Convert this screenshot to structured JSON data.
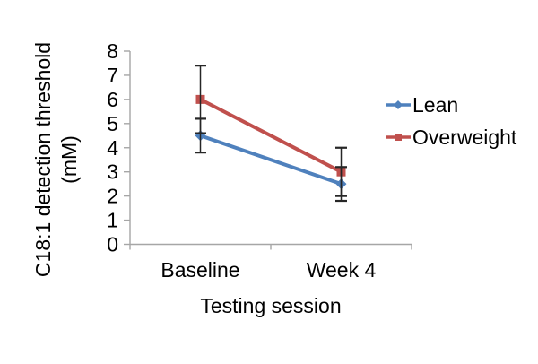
{
  "chart_data": {
    "type": "line",
    "title": "",
    "categories": [
      "Baseline",
      "Week 4"
    ],
    "series": [
      {
        "name": "Lean",
        "color": "#4F81BD",
        "marker": "diamond",
        "values": [
          4.5,
          2.5
        ],
        "error_plus": [
          0.7,
          0.7
        ],
        "error_minus": [
          0.7,
          0.7
        ]
      },
      {
        "name": "Overweight",
        "color": "#C0504D",
        "marker": "square",
        "values": [
          6.0,
          3.0
        ],
        "error_plus": [
          1.4,
          1.0
        ],
        "error_minus": [
          1.4,
          1.0
        ]
      }
    ],
    "xlabel": "Testing session",
    "ylabel_lines": [
      "C18:1 detection threshold",
      "(mM)"
    ],
    "ylim": [
      0,
      8
    ],
    "ytick_step": 1,
    "ytick_labels": [
      "0",
      "1",
      "2",
      "3",
      "4",
      "5",
      "6",
      "7",
      "8"
    ],
    "legend_position": "right",
    "grid": false,
    "colors": {
      "axis": "#A6A6A6",
      "error_bar": "#262626",
      "text": "#000000",
      "background": "#FFFFFF"
    }
  }
}
